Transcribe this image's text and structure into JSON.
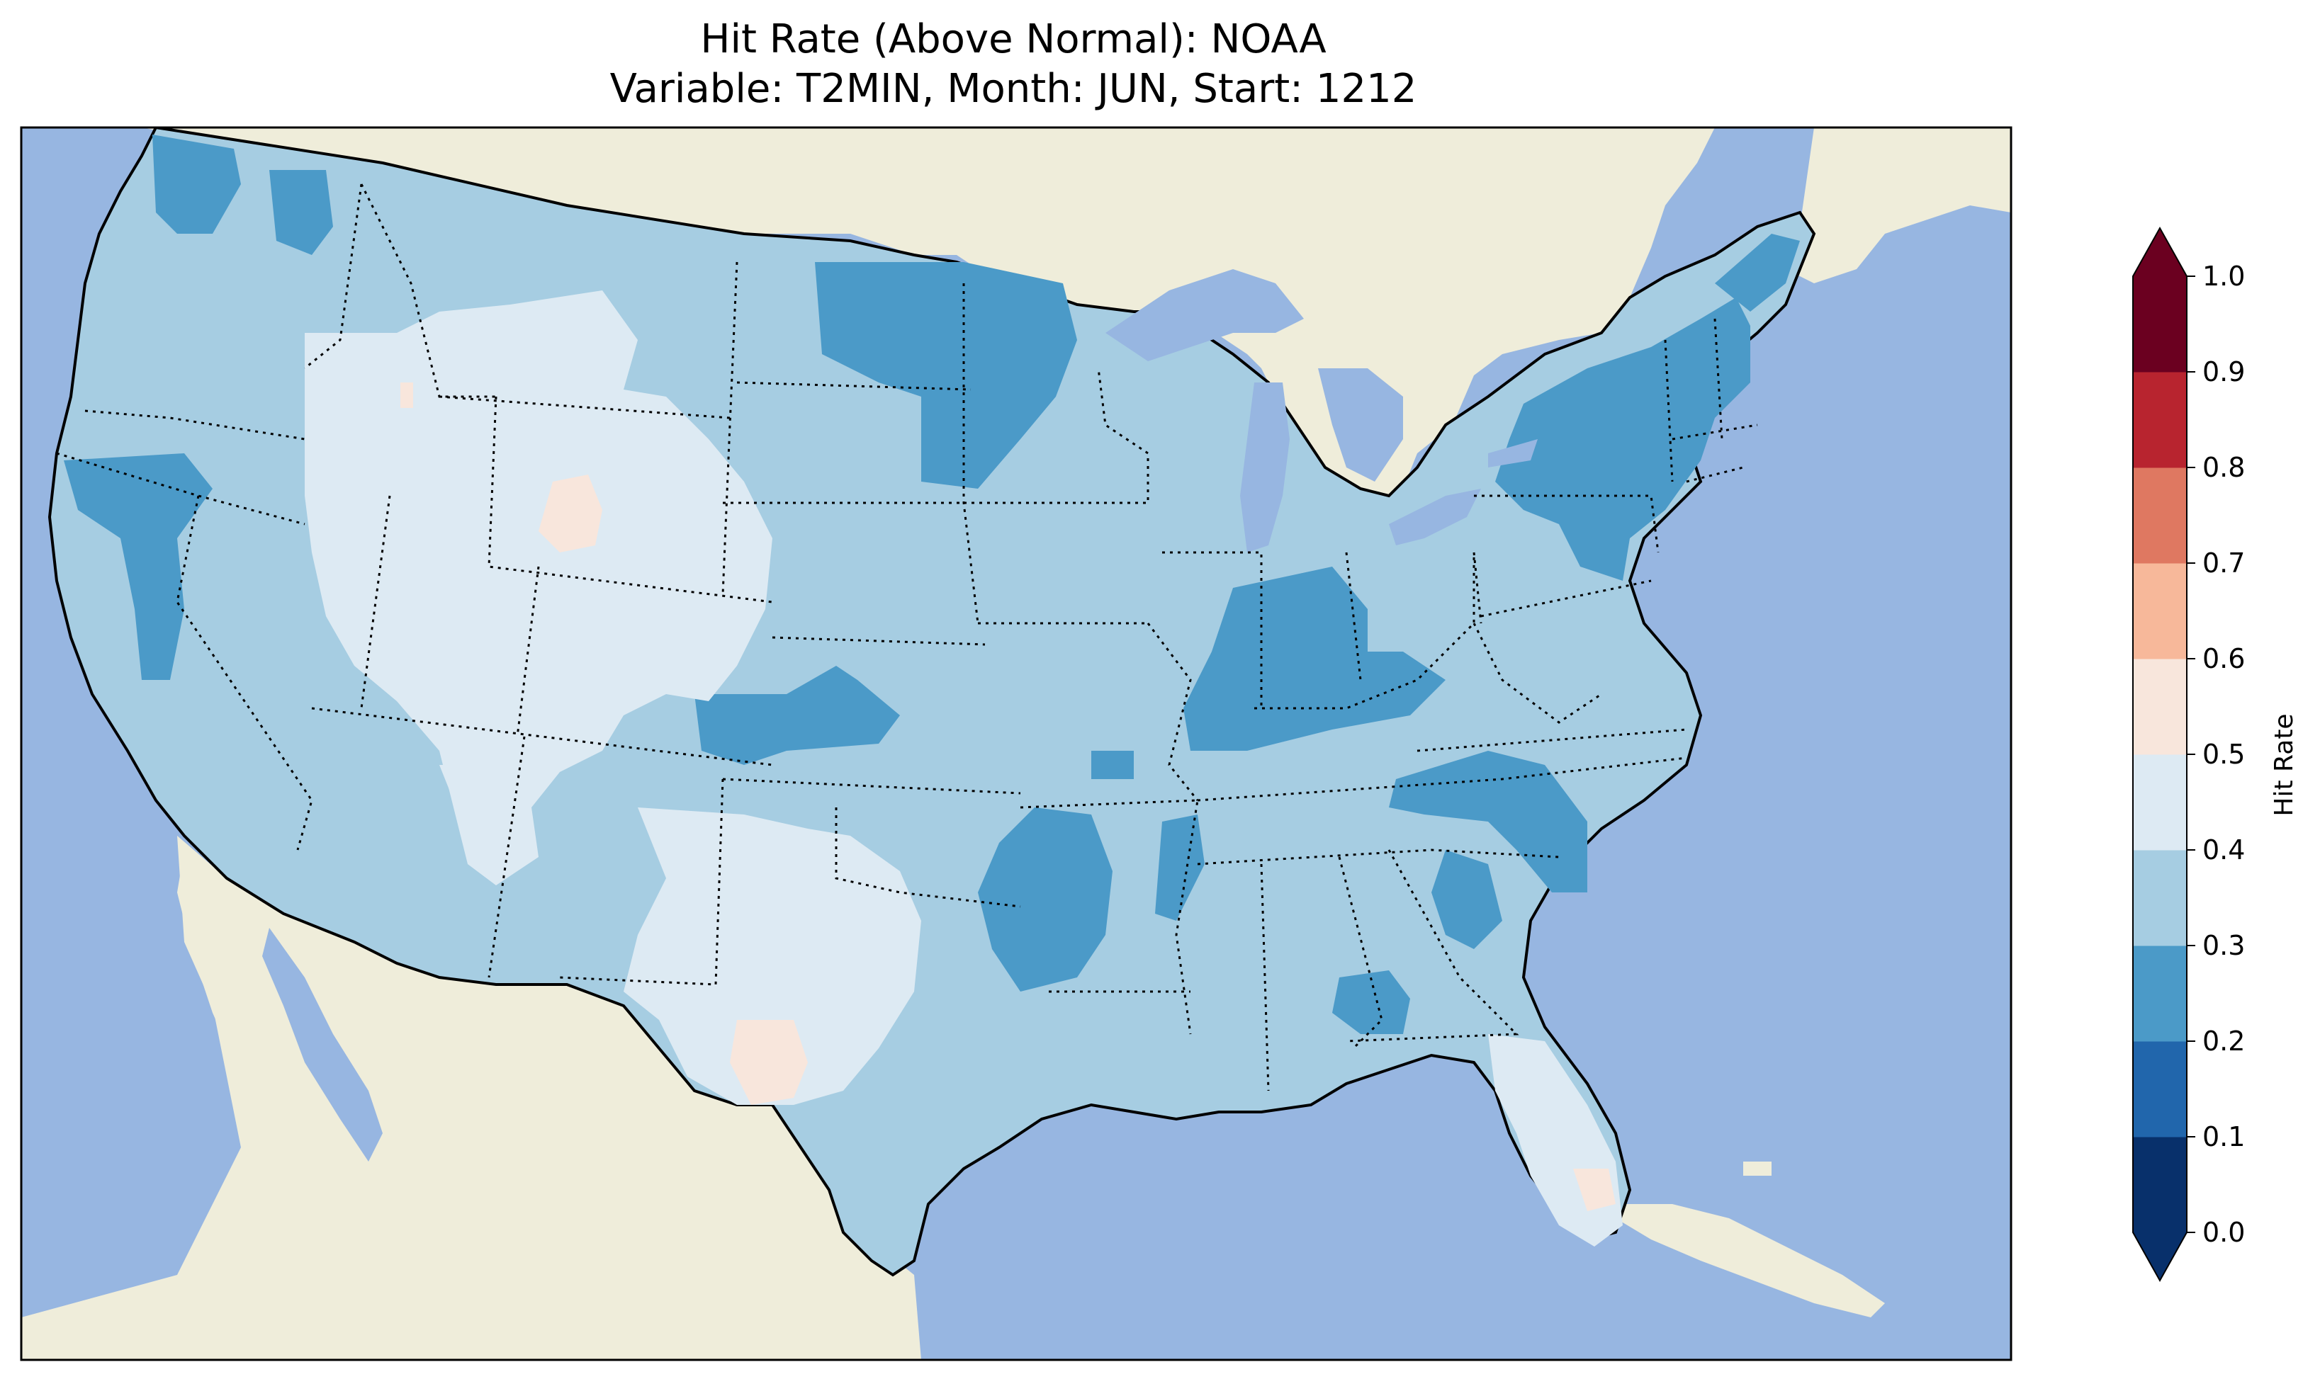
{
  "title": {
    "line1": "Hit Rate (Above Normal): NOAA",
    "line2": "Variable: T2MIN, Month: JUN, Start: 1212"
  },
  "colorbar": {
    "label": "Hit Rate",
    "ticks": [
      "0.0",
      "0.1",
      "0.2",
      "0.3",
      "0.4",
      "0.5",
      "0.6",
      "0.7",
      "0.8",
      "0.9",
      "1.0"
    ],
    "colors": [
      "#053061",
      "#2166ac",
      "#4393c3",
      "#92c5de",
      "#d1e5f0",
      "#f7f7f7",
      "#fddbc7",
      "#f4a582",
      "#d6604d",
      "#b2182b",
      "#67001f"
    ],
    "bin_colors": [
      "#08306b",
      "#2166ac",
      "#4b9ac8",
      "#a6cde2",
      "#ddeaf3",
      "#f8e6dc",
      "#f7b89a",
      "#df7861",
      "#b8242f",
      "#6b0020"
    ],
    "extend": "both"
  },
  "map": {
    "ocean_color": "#97b6e1",
    "land_color": "#efedda",
    "region": "Contiguous United States",
    "dominant_category": "0.3–0.4",
    "zones": [
      {
        "area": "Pacific Northwest coast",
        "category": "0.2–0.3"
      },
      {
        "area": "Northern California",
        "category": "0.2–0.3"
      },
      {
        "area": "Idaho / Montana / Wyoming / Utah / Colorado",
        "category": "0.4–0.5"
      },
      {
        "area": "Central Wyoming",
        "category": "0.5–0.6"
      },
      {
        "area": "North Dakota / Minnesota",
        "category": "0.2–0.3"
      },
      {
        "area": "Kansas",
        "category": "0.2–0.3"
      },
      {
        "area": "Indiana / Ohio Valley",
        "category": "0.2–0.3"
      },
      {
        "area": "New York / Northeast",
        "category": "0.2–0.3"
      },
      {
        "area": "Arkansas / Missouri",
        "category": "0.2–0.3"
      },
      {
        "area": "Carolinas",
        "category": "0.2–0.3"
      },
      {
        "area": "West Texas / New Mexico",
        "category": "0.4–0.5"
      },
      {
        "area": "West Texas spot",
        "category": "0.5–0.6"
      },
      {
        "area": "Florida",
        "category": "0.4–0.5"
      },
      {
        "area": "South Florida",
        "category": "0.5–0.6"
      }
    ]
  }
}
